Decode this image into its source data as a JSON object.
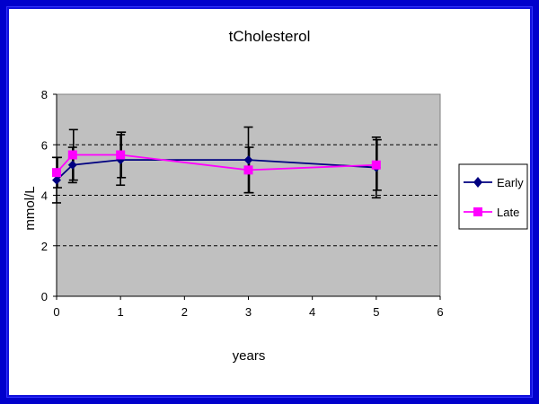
{
  "chart_data": {
    "type": "line",
    "title": "tCholesterol",
    "xlabel": "years",
    "ylabel": "mmol/L",
    "xlim": [
      0,
      6
    ],
    "ylim": [
      0,
      8
    ],
    "x_ticks": [
      "0",
      "1",
      "2",
      "3",
      "4",
      "5",
      "6"
    ],
    "y_ticks": [
      "0",
      "2",
      "4",
      "6",
      "8"
    ],
    "grid": "dashed horizontal",
    "legend_position": "right",
    "plot_background": "#c0c0c0",
    "series": [
      {
        "name": "Early",
        "color": "#000080",
        "marker": "diamond",
        "x": [
          0,
          0.25,
          1,
          3,
          5
        ],
        "y": [
          4.6,
          5.2,
          5.4,
          5.4,
          5.1
        ],
        "err": [
          0.9,
          0.7,
          1.0,
          1.3,
          1.2
        ]
      },
      {
        "name": "Late",
        "color": "#ff00ff",
        "marker": "square",
        "x": [
          0,
          0.25,
          1,
          3,
          5
        ],
        "y": [
          4.9,
          5.6,
          5.6,
          5.0,
          5.2
        ],
        "err": [
          0.6,
          1.0,
          0.9,
          0.9,
          1.0
        ]
      }
    ]
  }
}
